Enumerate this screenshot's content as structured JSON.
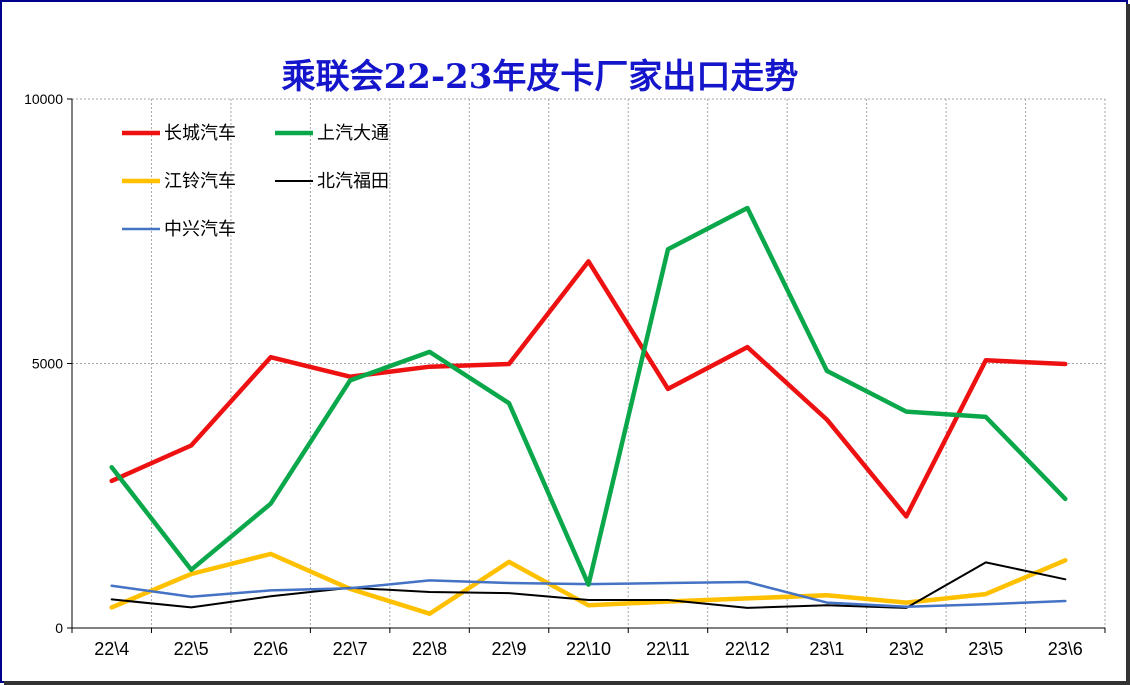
{
  "chart_data": {
    "type": "line",
    "title": "乘联会22-23年皮卡厂家出口走势",
    "categories": [
      "22\\4",
      "22\\5",
      "22\\6",
      "22\\7",
      "22\\8",
      "22\\9",
      "22\\10",
      "22\\11",
      "22\\12",
      "23\\1",
      "23\\2",
      "23\\5",
      "23\\6"
    ],
    "ylim": [
      0,
      10000
    ],
    "yticks": [
      "0",
      "5000",
      "10000"
    ],
    "grid": true,
    "legend_position": "top-left",
    "series": [
      {
        "name": "长城汽车",
        "color": "#ee1111",
        "width": 4.5,
        "values": [
          2780,
          3450,
          5120,
          4750,
          4940,
          4990,
          6930,
          4520,
          5310,
          3940,
          2110,
          5060,
          4990
        ]
      },
      {
        "name": "上汽大通",
        "color": "#0aa84a",
        "width": 4.5,
        "values": [
          3040,
          1100,
          2350,
          4680,
          5220,
          4250,
          820,
          7160,
          7940,
          4860,
          4090,
          3990,
          2440
        ]
      },
      {
        "name": "江铃汽车",
        "color": "#ffc000",
        "width": 4.5,
        "values": [
          390,
          1020,
          1400,
          740,
          270,
          1250,
          430,
          500,
          560,
          620,
          480,
          640,
          1280
        ]
      },
      {
        "name": "北汽福田",
        "color": "#000000",
        "width": 2,
        "values": [
          540,
          390,
          600,
          760,
          680,
          660,
          530,
          530,
          380,
          430,
          380,
          1240,
          920
        ]
      },
      {
        "name": "中兴汽车",
        "color": "#4472c4",
        "width": 2.5,
        "values": [
          800,
          590,
          710,
          750,
          900,
          850,
          830,
          850,
          870,
          480,
          400,
          450,
          510
        ]
      }
    ]
  }
}
